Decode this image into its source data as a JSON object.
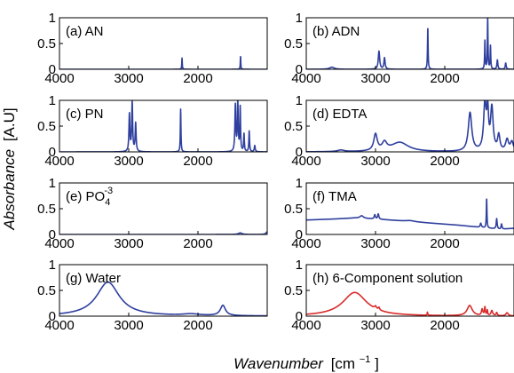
{
  "chart_data": {
    "type": "line",
    "xlabel": "Wavenumber",
    "xlabel_unit_prefix": "[cm",
    "xlabel_unit_exp": "−1",
    "xlabel_unit_suffix": "]",
    "ylabel": "Absorbance",
    "ylabel_unit": "[A.U]",
    "x_reversed": true,
    "xlim": [
      4000,
      1000
    ],
    "xticks": [
      4000,
      3000,
      2000
    ],
    "ylim": [
      0,
      1
    ],
    "yticks": [
      0,
      0.5,
      1
    ],
    "ytick_labels": [
      "0",
      "0.5",
      "1"
    ],
    "grid": false,
    "panels": [
      {
        "id": "a",
        "label": "(a) AN",
        "color": "#2e3f9e",
        "peaks": [
          [
            2230,
            0.22,
            4
          ],
          [
            1385,
            0.26,
            4
          ]
        ]
      },
      {
        "id": "b",
        "label": "(b) ADN",
        "color": "#2e3f9e",
        "peaks": [
          [
            3630,
            0.04,
            40
          ],
          [
            2950,
            0.35,
            12
          ],
          [
            2870,
            0.22,
            10
          ],
          [
            2245,
            0.82,
            5
          ],
          [
            1420,
            0.55,
            5
          ],
          [
            1380,
            1.0,
            5
          ],
          [
            1340,
            0.45,
            5
          ],
          [
            1240,
            0.18,
            8
          ],
          [
            1120,
            0.12,
            8
          ]
        ]
      },
      {
        "id": "c",
        "label": "(c) PN",
        "color": "#2e3f9e",
        "peaks": [
          [
            2990,
            0.72,
            8
          ],
          [
            2950,
            0.95,
            8
          ],
          [
            2900,
            0.55,
            8
          ],
          [
            2250,
            0.83,
            5
          ],
          [
            1460,
            0.9,
            8
          ],
          [
            1425,
            1.0,
            7
          ],
          [
            1390,
            0.85,
            6
          ],
          [
            1335,
            0.35,
            6
          ],
          [
            1260,
            0.4,
            6
          ],
          [
            1180,
            0.12,
            8
          ]
        ]
      },
      {
        "id": "d",
        "label": "(d) EDTA",
        "color": "#2e3f9e",
        "peaks": [
          [
            3500,
            0.03,
            60
          ],
          [
            3000,
            0.32,
            30
          ],
          [
            2870,
            0.15,
            40
          ],
          [
            2650,
            0.18,
            150
          ],
          [
            1635,
            0.75,
            30
          ],
          [
            1420,
            0.9,
            22
          ],
          [
            1380,
            0.7,
            15
          ],
          [
            1320,
            0.82,
            22
          ],
          [
            1220,
            0.3,
            20
          ],
          [
            1100,
            0.22,
            25
          ],
          [
            1030,
            0.18,
            25
          ]
        ]
      },
      {
        "id": "e",
        "label": "(e) PO",
        "label_sub": "4",
        "label_sup": "-3",
        "color": "#2e3f9e",
        "peaks": [
          [
            1390,
            0.03,
            30
          ],
          [
            1000,
            0.05,
            20
          ]
        ]
      },
      {
        "id": "f",
        "label": "(f) TMA",
        "color": "#2e3f9e",
        "baseline": [
          [
            4000,
            0.28
          ],
          [
            3600,
            0.3
          ],
          [
            3300,
            0.32
          ],
          [
            3000,
            0.3
          ],
          [
            2600,
            0.26
          ],
          [
            2200,
            0.22
          ],
          [
            1800,
            0.18
          ],
          [
            1500,
            0.14
          ],
          [
            1200,
            0.1
          ],
          [
            1000,
            0.12
          ]
        ],
        "peaks": [
          [
            3200,
            0.05,
            30
          ],
          [
            3010,
            0.08,
            10
          ],
          [
            2960,
            0.1,
            10
          ],
          [
            2500,
            0.02,
            80
          ],
          [
            1480,
            0.08,
            10
          ],
          [
            1395,
            0.58,
            5
          ],
          [
            1250,
            0.2,
            8
          ],
          [
            1180,
            0.1,
            8
          ]
        ]
      },
      {
        "id": "g",
        "label": "(g) Water",
        "color": "#2e3f9e",
        "peaks": [
          [
            3300,
            0.66,
            200
          ],
          [
            2100,
            0.03,
            150
          ],
          [
            1640,
            0.2,
            45
          ]
        ]
      },
      {
        "id": "h",
        "label": "(h) 6-Component solution",
        "color": "#d92a2a",
        "peaks": [
          [
            3300,
            0.46,
            210
          ],
          [
            3000,
            0.05,
            15
          ],
          [
            2950,
            0.05,
            12
          ],
          [
            2250,
            0.06,
            5
          ],
          [
            1640,
            0.2,
            45
          ],
          [
            1460,
            0.12,
            12
          ],
          [
            1420,
            0.16,
            8
          ],
          [
            1385,
            0.1,
            6
          ],
          [
            1320,
            0.1,
            15
          ],
          [
            1250,
            0.06,
            10
          ],
          [
            1100,
            0.06,
            20
          ]
        ]
      }
    ]
  }
}
